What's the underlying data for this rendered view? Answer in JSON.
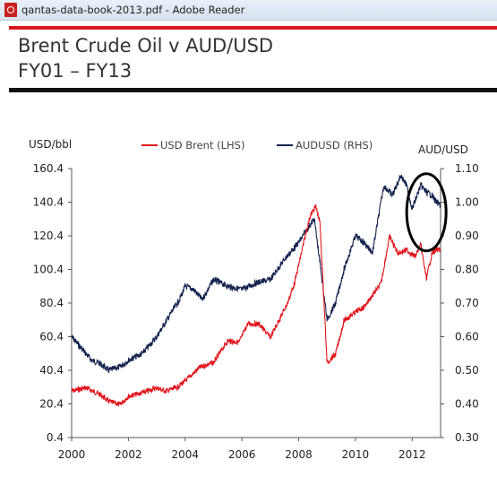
{
  "window": {
    "title": "qantas-data-book-2013.pdf - Adobe Reader"
  },
  "slide": {
    "title": "Brent Crude Oil v AUD/USD",
    "subtitle": "FY01 – FY13",
    "accent_red": "#d71920"
  },
  "chart_data": {
    "type": "line",
    "title": "",
    "y_left_label": "USD/bbl",
    "y_right_label": "AUD/USD",
    "x_range": [
      2000,
      2013
    ],
    "x_ticks": [
      "2000",
      "2002",
      "2004",
      "2006",
      "2008",
      "2010",
      "2012"
    ],
    "y_left_range": [
      0.4,
      160.4
    ],
    "y_left_ticks": [
      "0.4",
      "20.4",
      "40.4",
      "60.4",
      "80.4",
      "100.4",
      "120.4",
      "140.4",
      "160.4"
    ],
    "y_right_range": [
      0.3,
      1.1
    ],
    "y_right_ticks": [
      "0.30",
      "0.40",
      "0.50",
      "0.60",
      "0.70",
      "0.80",
      "0.90",
      "1.00",
      "1.10"
    ],
    "grid": false,
    "legend_position": "top",
    "series": [
      {
        "name": "USD Brent (LHS)",
        "axis": "left",
        "color": "#e0161c",
        "x": [
          2000.0,
          2000.5,
          2001.0,
          2001.3,
          2001.7,
          2002.0,
          2002.5,
          2003.0,
          2003.3,
          2003.7,
          2004.0,
          2004.5,
          2005.0,
          2005.5,
          2005.9,
          2006.2,
          2006.6,
          2007.0,
          2007.3,
          2007.6,
          2007.85,
          2008.0,
          2008.2,
          2008.4,
          2008.6,
          2008.75,
          2009.0,
          2009.3,
          2009.6,
          2010.0,
          2010.3,
          2010.6,
          2010.9,
          2011.2,
          2011.5,
          2011.8,
          2012.1,
          2012.3,
          2012.5,
          2012.7,
          2012.85,
          2013.0
        ],
        "values": [
          28,
          30,
          26,
          22,
          20,
          25,
          27,
          30,
          28,
          30,
          34,
          42,
          45,
          58,
          57,
          68,
          68,
          60,
          70,
          80,
          92,
          103,
          118,
          132,
          138,
          128,
          45,
          50,
          70,
          75,
          78,
          85,
          92,
          120,
          110,
          112,
          108,
          115,
          95,
          110,
          112,
          112
        ]
      },
      {
        "name": "AUDUSD (RHS)",
        "axis": "right",
        "color": "#14224f",
        "x": [
          2000.0,
          2000.3,
          2000.7,
          2001.0,
          2001.3,
          2001.7,
          2002.0,
          2002.5,
          2003.0,
          2003.5,
          2003.8,
          2004.0,
          2004.3,
          2004.6,
          2005.0,
          2005.5,
          2006.0,
          2006.5,
          2007.0,
          2007.5,
          2007.8,
          2008.0,
          2008.3,
          2008.55,
          2008.75,
          2009.0,
          2009.3,
          2009.6,
          2010.0,
          2010.3,
          2010.6,
          2010.9,
          2011.0,
          2011.3,
          2011.6,
          2011.8,
          2012.0,
          2012.3,
          2012.5,
          2012.7,
          2012.85,
          2013.0
        ],
        "values": [
          0.6,
          0.57,
          0.53,
          0.52,
          0.5,
          0.51,
          0.53,
          0.55,
          0.6,
          0.67,
          0.71,
          0.75,
          0.74,
          0.71,
          0.77,
          0.75,
          0.74,
          0.76,
          0.77,
          0.83,
          0.86,
          0.88,
          0.92,
          0.95,
          0.82,
          0.65,
          0.7,
          0.8,
          0.9,
          0.88,
          0.85,
          1.0,
          1.05,
          1.02,
          1.08,
          1.05,
          0.98,
          1.05,
          1.03,
          1.02,
          1.0,
          0.99
        ]
      }
    ],
    "annotation": {
      "shape": "ellipse",
      "color": "#000000",
      "x": 2012.5,
      "y_right": 0.97
    }
  }
}
